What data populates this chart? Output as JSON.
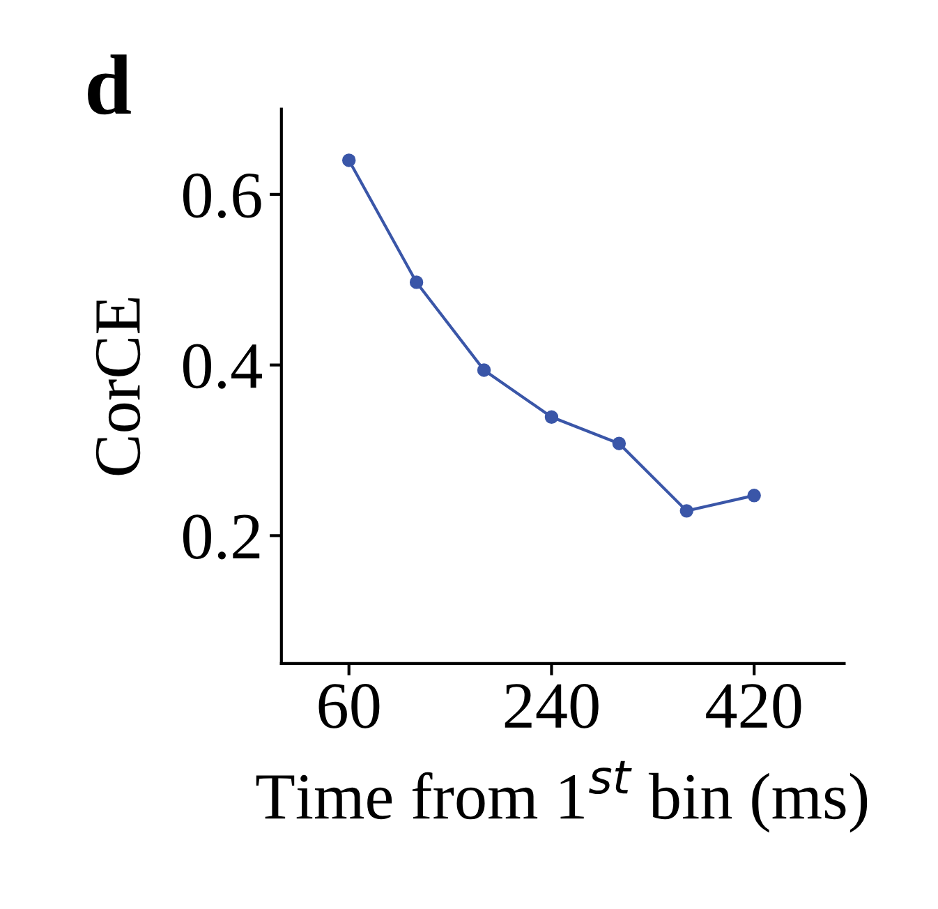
{
  "chart_data": {
    "type": "line",
    "title": "d",
    "xlabel": "Time from 1$^{st}$ bin (ms)",
    "ylabel": "CorCE",
    "x": [
      60,
      120,
      180,
      240,
      300,
      360,
      420
    ],
    "series": [
      {
        "color": "#3a56a8",
        "values": [
          0.64,
          0.497,
          0.394,
          0.339,
          0.308,
          0.229,
          0.247
        ]
      }
    ],
    "xlim": [
      0,
      500
    ],
    "xticks": [
      60,
      240,
      420
    ],
    "ylim": [
      0.05,
      0.7
    ],
    "yticks": [
      0.2,
      0.4,
      0.6
    ],
    "marker": "circle",
    "line_style": "solid",
    "grid": false,
    "legend": false
  }
}
